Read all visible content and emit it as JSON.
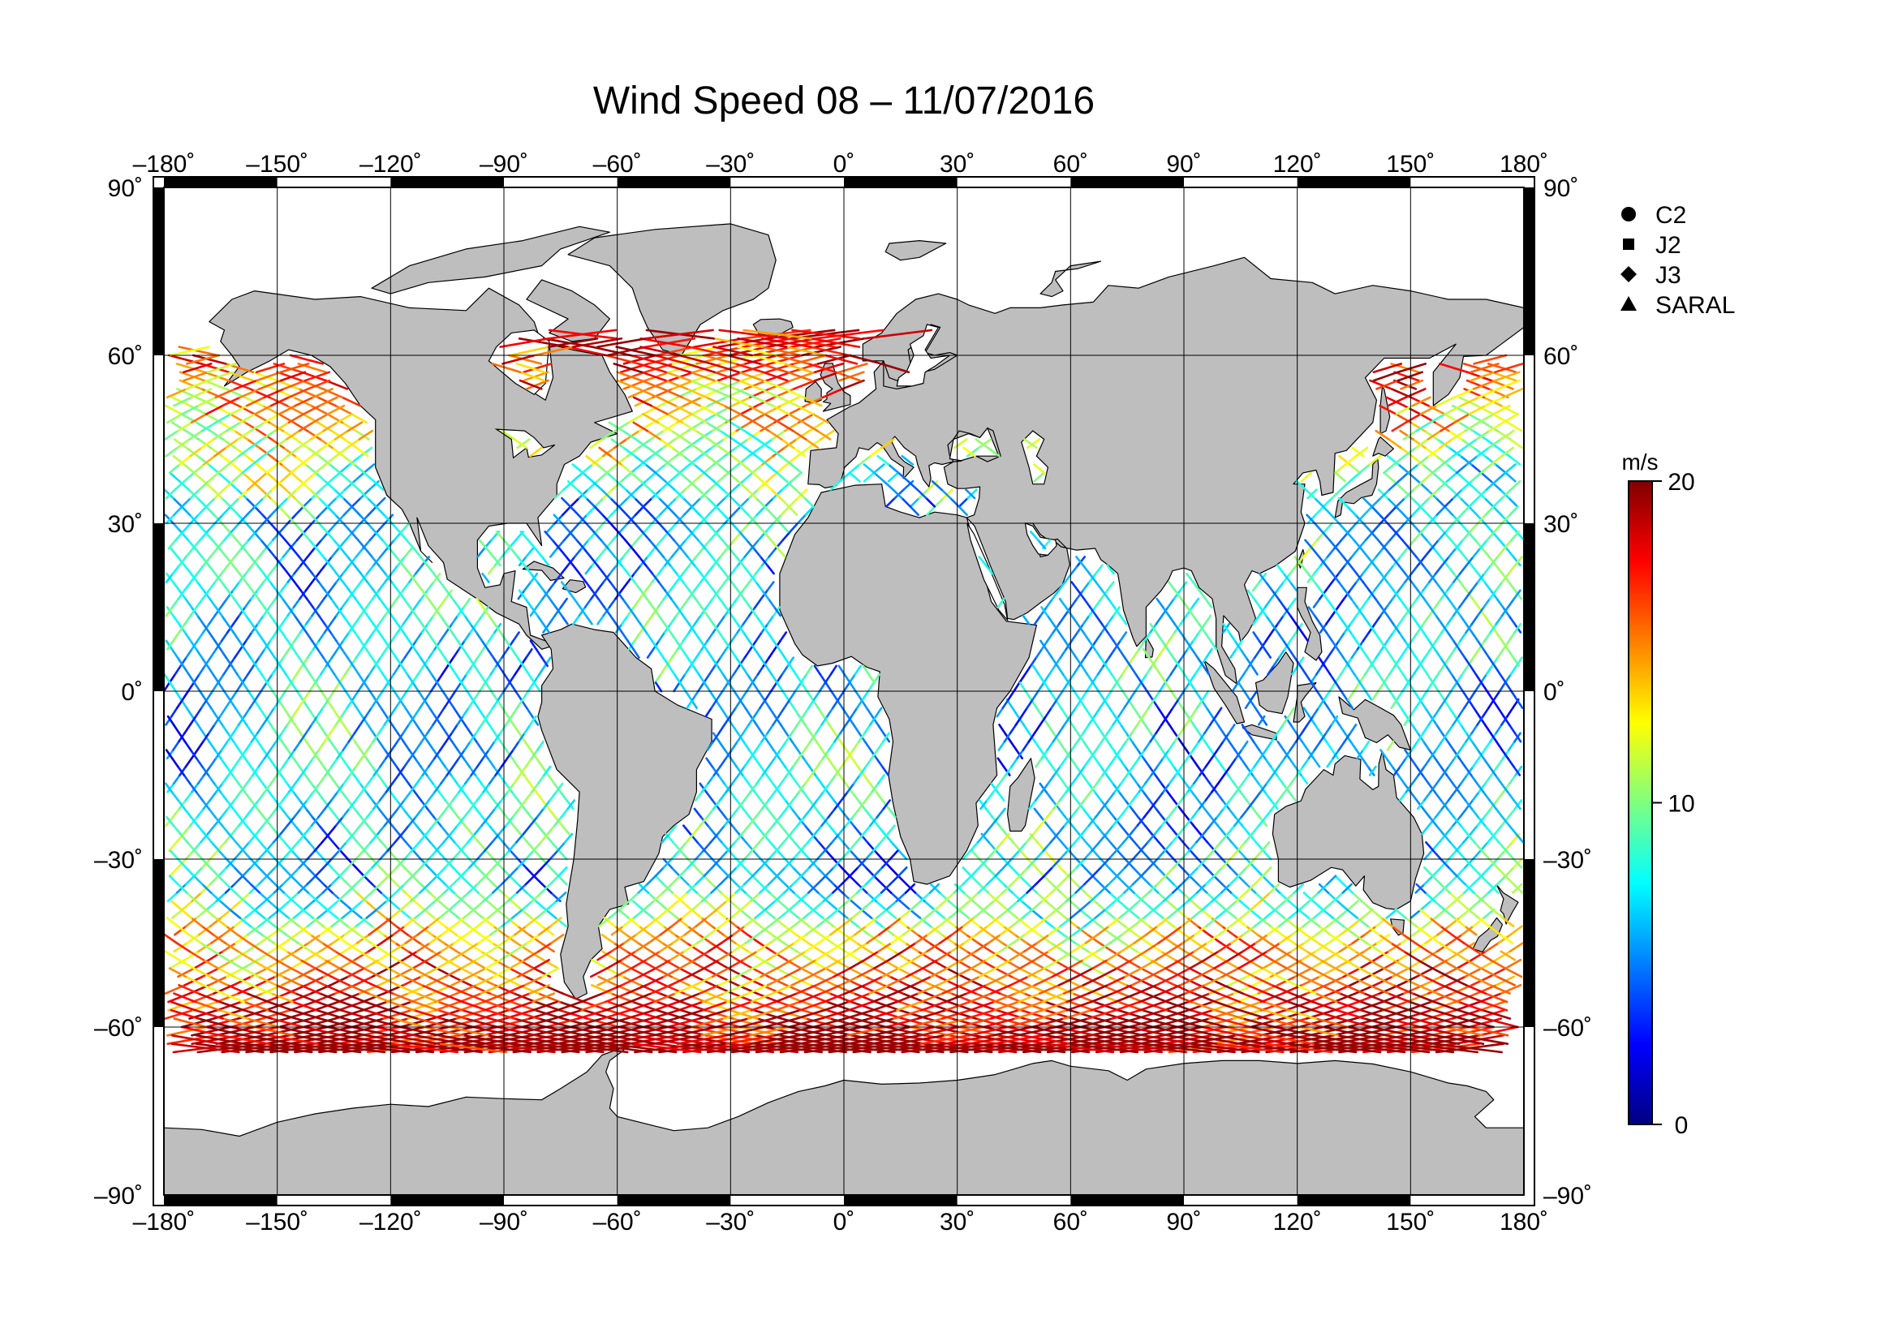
{
  "title": "Wind Speed 08 – 11/07/2016",
  "map": {
    "projection": "equirectangular",
    "lon_range": [
      -180,
      180
    ],
    "lat_range": [
      -90,
      90
    ],
    "lon_ticks": [
      "–180˚",
      "–150˚",
      "–120˚",
      "–90˚",
      "–60˚",
      "–30˚",
      "0˚",
      "30˚",
      "60˚",
      "90˚",
      "120˚",
      "150˚",
      "180˚"
    ],
    "lat_ticks_left": [
      "90˚",
      "60˚",
      "30˚",
      "0˚",
      "–30˚",
      "–60˚",
      "–90˚"
    ],
    "lat_ticks_right": [
      "90˚",
      "60˚",
      "30˚",
      "0˚",
      "–30˚",
      "–60˚",
      "–90˚"
    ],
    "grid": true,
    "land_color": "#bebebe",
    "ocean_color": "#ffffff"
  },
  "legend": {
    "placement": "top-right",
    "items": [
      {
        "label": "C2",
        "marker": "circle"
      },
      {
        "label": "J2",
        "marker": "square"
      },
      {
        "label": "J3",
        "marker": "diamond"
      },
      {
        "label": "SARAL",
        "marker": "triangle"
      }
    ]
  },
  "colorbar": {
    "unit": "m/s",
    "min": 0,
    "max": 20,
    "tick_labels": [
      "20",
      "10",
      "0"
    ],
    "colormap": [
      "#00007f",
      "#0000ff",
      "#007fff",
      "#00ffff",
      "#7fff7f",
      "#ffff00",
      "#ff7f00",
      "#ff0000",
      "#7f0000"
    ]
  },
  "chart_data": {
    "type": "map",
    "title": "Wind Speed 08 – 11/07/2016",
    "colorbar_range": [
      0,
      20
    ],
    "colorbar_unit": "m/s",
    "series": [
      {
        "name": "C2"
      },
      {
        "name": "J2"
      },
      {
        "name": "J3"
      },
      {
        "name": "SARAL"
      }
    ]
  }
}
